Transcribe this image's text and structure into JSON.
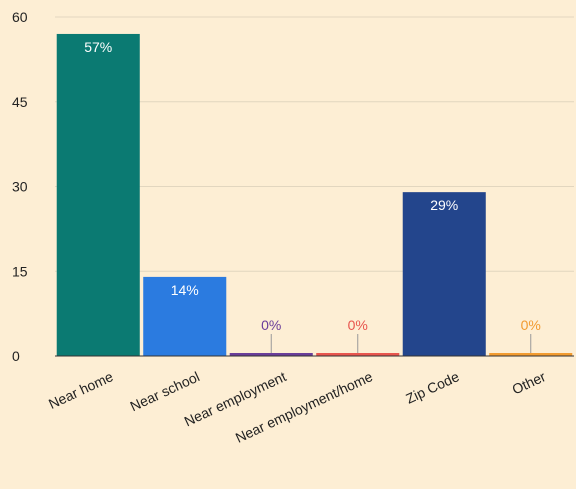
{
  "chart_data": {
    "type": "bar",
    "title": "",
    "xlabel": "",
    "ylabel": "",
    "ylim": [
      0,
      60
    ],
    "yticks": [
      "0",
      "15",
      "30",
      "45",
      "60"
    ],
    "grid": true,
    "legend": "none",
    "categories": [
      "Near home",
      "Near school",
      "Near employment",
      "Near employment/home",
      "Zip Code",
      "Other"
    ],
    "values": [
      57,
      14,
      0,
      0,
      29,
      0
    ],
    "labels": [
      "57%",
      "14%",
      "0%",
      "0%",
      "29%",
      "0%"
    ],
    "colors": [
      "#0b7a72",
      "#2b7be0",
      "#6a3d9a",
      "#e8554e",
      "#23458c",
      "#f29b30"
    ]
  },
  "colors": {
    "background": "#fdeed4",
    "gridline": "#e2d6bf",
    "axis": "#333333",
    "tick_text": "#222222"
  }
}
